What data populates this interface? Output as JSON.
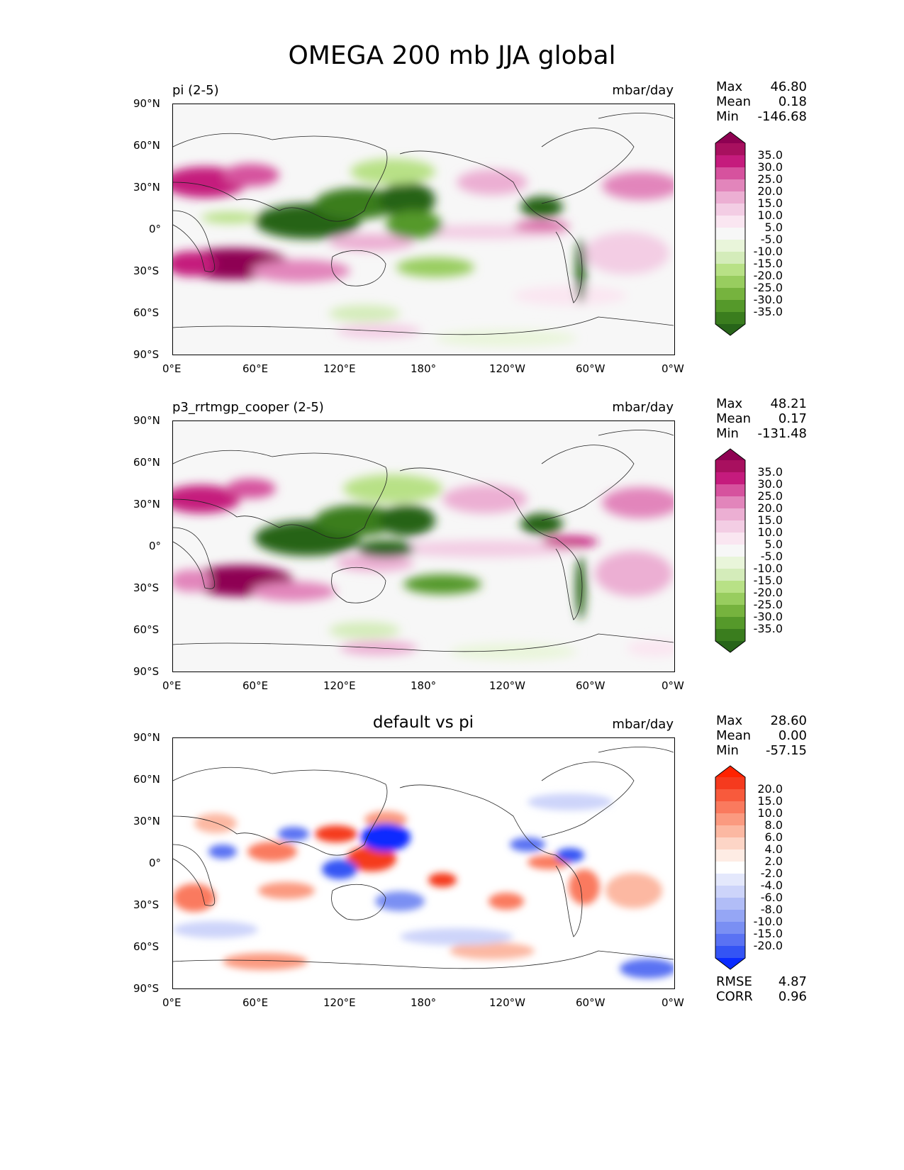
{
  "chart_data": {
    "title": "OMEGA 200 mb JJA global",
    "panels": [
      {
        "type": "heatmap",
        "left_title": "pi (2-5)",
        "center_title": "",
        "units": "mbar/day",
        "stats": [
          {
            "label": "Max",
            "value": "46.80"
          },
          {
            "label": "Mean",
            "value": "0.18"
          },
          {
            "label": "Min",
            "value": "-146.68"
          }
        ],
        "colorbar": {
          "labels": [
            "35.0",
            "30.0",
            "25.0",
            "20.0",
            "15.0",
            "10.0",
            "5.0",
            "-5.0",
            "-10.0",
            "-15.0",
            "-20.0",
            "-25.0",
            "-30.0",
            "-35.0"
          ],
          "colors": [
            "#8e0152",
            "#a8105f",
            "#c51b7d",
            "#d6529e",
            "#e285bb",
            "#ecafd3",
            "#f3cde4",
            "#fae6f1",
            "#f7f7f7",
            "#e9f5da",
            "#d4ecba",
            "#b8e186",
            "#98cd5f",
            "#76b33e",
            "#55992a",
            "#3a7d1e",
            "#276419"
          ],
          "extend": "both"
        },
        "x_ticks": [
          "0°E",
          "60°E",
          "120°E",
          "180°",
          "120°W",
          "60°W",
          "0°W"
        ],
        "y_ticks": [
          "90°N",
          "60°N",
          "30°N",
          "0°",
          "30°S",
          "60°S",
          "90°S"
        ],
        "xlim": [
          0,
          360
        ],
        "ylim": [
          -90,
          90
        ]
      },
      {
        "type": "heatmap",
        "left_title": "p3_rrtmgp_cooper (2-5)",
        "center_title": "",
        "units": "mbar/day",
        "stats": [
          {
            "label": "Max",
            "value": "48.21"
          },
          {
            "label": "Mean",
            "value": "0.17"
          },
          {
            "label": "Min",
            "value": "-131.48"
          }
        ],
        "colorbar": {
          "labels": [
            "35.0",
            "30.0",
            "25.0",
            "20.0",
            "15.0",
            "10.0",
            "5.0",
            "-5.0",
            "-10.0",
            "-15.0",
            "-20.0",
            "-25.0",
            "-30.0",
            "-35.0"
          ],
          "colors": [
            "#8e0152",
            "#a8105f",
            "#c51b7d",
            "#d6529e",
            "#e285bb",
            "#ecafd3",
            "#f3cde4",
            "#fae6f1",
            "#f7f7f7",
            "#e9f5da",
            "#d4ecba",
            "#b8e186",
            "#98cd5f",
            "#76b33e",
            "#55992a",
            "#3a7d1e",
            "#276419"
          ],
          "extend": "both"
        },
        "x_ticks": [
          "0°E",
          "60°E",
          "120°E",
          "180°",
          "120°W",
          "60°W",
          "0°W"
        ],
        "y_ticks": [
          "90°N",
          "60°N",
          "30°N",
          "0°",
          "30°S",
          "60°S",
          "90°S"
        ],
        "xlim": [
          0,
          360
        ],
        "ylim": [
          -90,
          90
        ]
      },
      {
        "type": "heatmap",
        "left_title": "",
        "center_title": "default vs pi",
        "units": "mbar/day",
        "stats": [
          {
            "label": "Max",
            "value": "28.60"
          },
          {
            "label": "Mean",
            "value": "0.00"
          },
          {
            "label": "Min",
            "value": "-57.15"
          }
        ],
        "bottom_stats": [
          {
            "label": "RMSE",
            "value": "4.87"
          },
          {
            "label": "CORR",
            "value": "0.96"
          }
        ],
        "colorbar": {
          "labels": [
            "20.0",
            "15.0",
            "10.0",
            "8.0",
            "6.0",
            "4.0",
            "2.0",
            "-2.0",
            "-4.0",
            "-6.0",
            "-8.0",
            "-10.0",
            "-15.0",
            "-20.0"
          ],
          "colors": [
            "#ff2200",
            "#f53a1e",
            "#f85a3c",
            "#fa7a5e",
            "#fb9a80",
            "#fcb8a2",
            "#fdd5c6",
            "#feece4",
            "#ffffff",
            "#e4e8fc",
            "#cdd4fa",
            "#b1bdf7",
            "#95a6f5",
            "#7a8ff3",
            "#5a72f3",
            "#3454f4",
            "#0a2bff"
          ],
          "extend": "both"
        },
        "x_ticks": [
          "0°E",
          "60°E",
          "120°E",
          "180°",
          "120°W",
          "60°W",
          "0°W"
        ],
        "y_ticks": [
          "90°N",
          "60°N",
          "30°N",
          "0°",
          "30°S",
          "60°S",
          "90°S"
        ],
        "xlim": [
          0,
          360
        ],
        "ylim": [
          -90,
          90
        ]
      }
    ]
  }
}
